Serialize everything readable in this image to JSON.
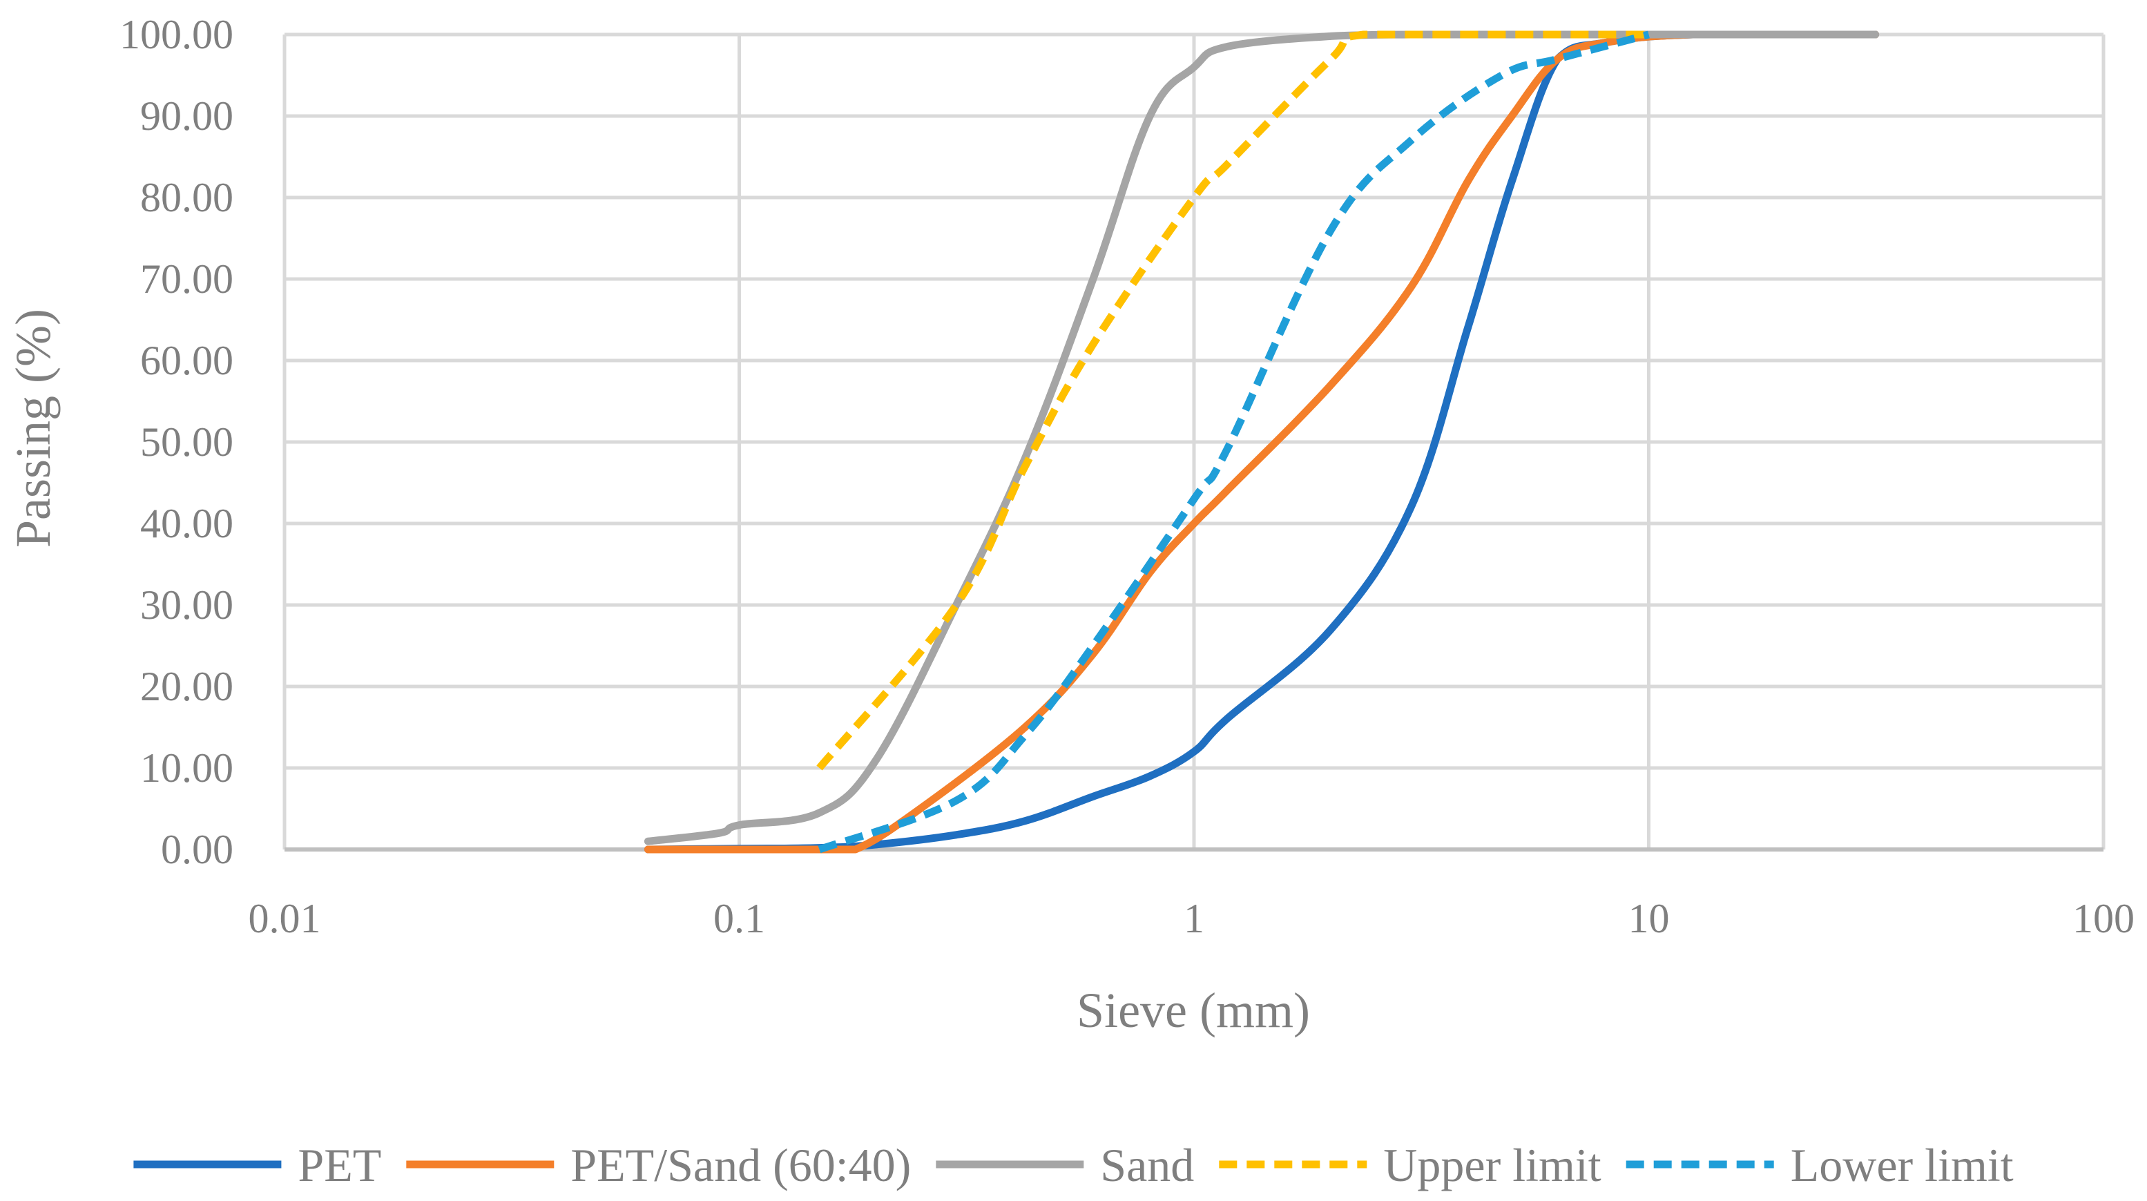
{
  "chart_data": {
    "type": "line",
    "title": "",
    "xlabel": "Sieve (mm)",
    "ylabel": "Passing (%)",
    "xscale": "log",
    "xlim": [
      0.01,
      100
    ],
    "ylim": [
      0,
      100
    ],
    "x_tick_labels": [
      "0.01",
      "0.1",
      "1",
      "10",
      "100"
    ],
    "y_tick_labels": [
      "0.00",
      "10.00",
      "20.00",
      "30.00",
      "40.00",
      "50.00",
      "60.00",
      "70.00",
      "80.00",
      "90.00",
      "100.00"
    ],
    "grid": true,
    "legend_position": "bottom",
    "series": [
      {
        "name": "PET",
        "color": "#1f6fc1",
        "dashed": false,
        "points": [
          [
            0.063,
            0
          ],
          [
            0.1,
            0.1
          ],
          [
            0.15,
            0.2
          ],
          [
            0.2,
            0.6
          ],
          [
            0.3,
            1.8
          ],
          [
            0.425,
            3.5
          ],
          [
            0.6,
            6.5
          ],
          [
            0.8,
            9
          ],
          [
            1.0,
            12
          ],
          [
            1.18,
            16
          ],
          [
            2.0,
            27
          ],
          [
            3.0,
            42
          ],
          [
            4.0,
            64
          ],
          [
            5.0,
            82
          ],
          [
            6.3,
            97
          ],
          [
            8.0,
            99
          ],
          [
            12.5,
            100
          ],
          [
            31.5,
            100
          ]
        ]
      },
      {
        "name": "PET/Sand (60:40)",
        "color": "#f47f2a",
        "dashed": false,
        "points": [
          [
            0.063,
            0
          ],
          [
            0.1,
            0
          ],
          [
            0.15,
            0
          ],
          [
            0.18,
            0
          ],
          [
            0.25,
            5
          ],
          [
            0.425,
            15
          ],
          [
            0.6,
            24
          ],
          [
            0.8,
            34
          ],
          [
            1.0,
            40
          ],
          [
            1.18,
            44
          ],
          [
            2.0,
            57
          ],
          [
            3.0,
            69
          ],
          [
            4.0,
            82
          ],
          [
            5.0,
            90
          ],
          [
            6.3,
            97
          ],
          [
            8.0,
            99
          ],
          [
            12.5,
            100
          ],
          [
            31.5,
            100
          ]
        ]
      },
      {
        "name": "Sand",
        "color": "#a5a5a5",
        "dashed": false,
        "points": [
          [
            0.063,
            1
          ],
          [
            0.09,
            2
          ],
          [
            0.1,
            3
          ],
          [
            0.15,
            4.5
          ],
          [
            0.2,
            11
          ],
          [
            0.3,
            30
          ],
          [
            0.425,
            48
          ],
          [
            0.6,
            70
          ],
          [
            0.8,
            90
          ],
          [
            1.0,
            96
          ],
          [
            1.18,
            98.5
          ],
          [
            2.0,
            99.8
          ],
          [
            3.0,
            100
          ],
          [
            5.0,
            100
          ],
          [
            12.5,
            100
          ],
          [
            31.5,
            100
          ]
        ]
      },
      {
        "name": "Upper limit",
        "color": "#ffc000",
        "dashed": true,
        "points": [
          [
            0.15,
            10
          ],
          [
            0.3,
            30
          ],
          [
            0.425,
            47
          ],
          [
            0.6,
            62
          ],
          [
            1.0,
            80
          ],
          [
            1.18,
            84
          ],
          [
            2.0,
            97
          ],
          [
            2.36,
            100
          ],
          [
            5.0,
            100
          ],
          [
            10.0,
            100
          ]
        ]
      },
      {
        "name": "Lower limit",
        "color": "#1f9ed8",
        "dashed": true,
        "points": [
          [
            0.15,
            0
          ],
          [
            0.3,
            6
          ],
          [
            0.425,
            14
          ],
          [
            0.6,
            25
          ],
          [
            1.0,
            43
          ],
          [
            1.18,
            49
          ],
          [
            2.0,
            76
          ],
          [
            3.0,
            87
          ],
          [
            4.75,
            95
          ],
          [
            6.3,
            97
          ],
          [
            10.0,
            100
          ]
        ]
      }
    ]
  }
}
